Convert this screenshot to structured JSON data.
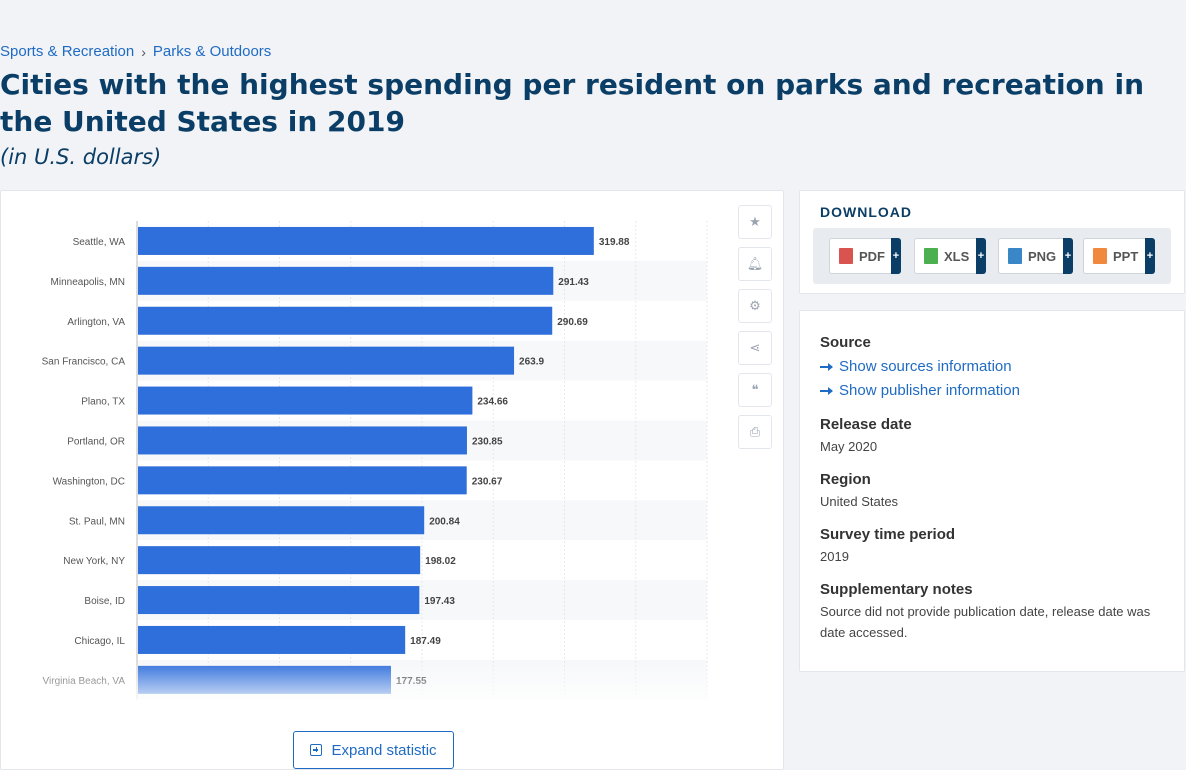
{
  "breadcrumb": {
    "item1": "Sports & Recreation",
    "separator": "›",
    "item2": "Parks & Outdoors"
  },
  "page_title": "Cities with the highest spending per resident on parks and recreation in the United States in 2019",
  "subtitle": "(in U.S. dollars)",
  "chart_data": {
    "type": "bar",
    "orientation": "horizontal",
    "categories": [
      "Seattle, WA",
      "Minneapolis, MN",
      "Arlington, VA",
      "San Francisco, CA",
      "Plano, TX",
      "Portland, OR",
      "Washington, DC",
      "St. Paul, MN",
      "New York, NY",
      "Boise, ID",
      "Chicago, IL",
      "Virginia Beach, VA"
    ],
    "values": [
      319.88,
      291.43,
      290.69,
      263.9,
      234.66,
      230.85,
      230.67,
      200.84,
      198.02,
      197.43,
      187.49,
      177.55
    ],
    "value_labels": [
      "319.88",
      "291.43",
      "290.69",
      "263.9",
      "234.66",
      "230.85",
      "230.67",
      "200.84",
      "198.02",
      "197.43",
      "187.49",
      "177.55"
    ],
    "xlim": [
      0,
      400
    ],
    "bar_color": "#2f6fdb",
    "grid": true,
    "xlabel": "",
    "ylabel": "",
    "title": ""
  },
  "toolbar": {
    "icons": [
      "star-icon",
      "bell-icon",
      "gear-icon",
      "share-icon",
      "quote-icon",
      "print-icon"
    ],
    "glyphs": [
      "★",
      "🔔︎",
      "⚙",
      "⋖",
      "❝",
      "⎙"
    ]
  },
  "expand_button": "Expand statistic",
  "download": {
    "heading": "DOWNLOAD",
    "buttons": [
      {
        "label": "PDF",
        "plus": "+",
        "color": "#d9534f"
      },
      {
        "label": "XLS",
        "plus": "+",
        "color": "#4caf50"
      },
      {
        "label": "PNG",
        "plus": "+",
        "color": "#3a87c8"
      },
      {
        "label": "PPT",
        "plus": "+",
        "color": "#f0883e"
      }
    ]
  },
  "info": {
    "source_label": "Source",
    "show_sources": "Show sources information",
    "show_publisher": "Show publisher information",
    "release_label": "Release date",
    "release_value": "May 2020",
    "region_label": "Region",
    "region_value": "United States",
    "survey_label": "Survey time period",
    "survey_value": "2019",
    "notes_label": "Supplementary notes",
    "notes_value": "Source did not provide publication date, release date was date accessed."
  }
}
